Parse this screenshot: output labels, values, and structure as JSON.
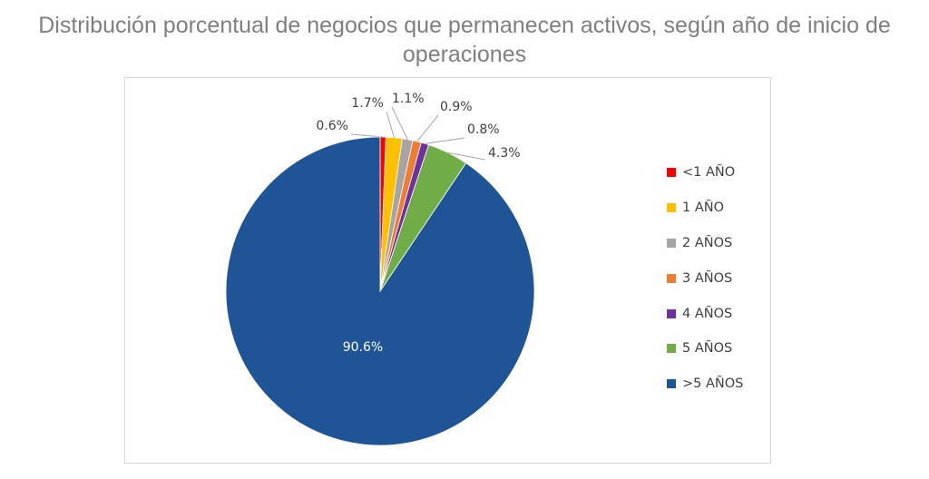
{
  "chart_data": {
    "type": "pie",
    "title": "Distribución porcentual de negocios que permanecen activos, según año de inicio de operaciones",
    "categories": [
      "<1 AÑO",
      "1 AÑO",
      "2 AÑOS",
      "3 AÑOS",
      "4 AÑOS",
      "5 AÑOS",
      ">5 AÑOS"
    ],
    "values": [
      0.6,
      1.7,
      1.1,
      0.9,
      0.8,
      4.3,
      90.6
    ],
    "data_labels": [
      "0.6%",
      "1.7%",
      "1.1%",
      "0.9%",
      "0.8%",
      "4.3%",
      "90.6%"
    ],
    "colors": [
      "#ff0000",
      "#ffc000",
      "#a5a5a5",
      "#ed7d31",
      "#7030a0",
      "#70ad47",
      "#1f5597"
    ],
    "legend_position": "right"
  }
}
